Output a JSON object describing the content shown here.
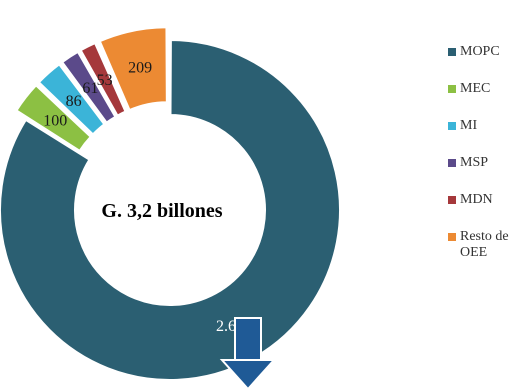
{
  "chart_data": {
    "type": "pie",
    "variant": "donut",
    "center_label": "G. 3,2 billones",
    "slices": [
      {
        "label": "MOPC",
        "value": 2666,
        "value_label": "2.666",
        "color": "#2b5f72"
      },
      {
        "label": "MEC",
        "value": 100,
        "value_label": "100",
        "color": "#8cc043"
      },
      {
        "label": "MI",
        "value": 86,
        "value_label": "86",
        "color": "#3bb4d8"
      },
      {
        "label": "MSP",
        "value": 61,
        "value_label": "61",
        "color": "#5b4a8a"
      },
      {
        "label": "MDN",
        "value": 53,
        "value_label": "53",
        "color": "#a5383b"
      },
      {
        "label": "Resto de\nOEE",
        "value": 209,
        "value_label": "209",
        "color": "#ec8a33"
      }
    ],
    "legend_position": "right",
    "exploded_slices": [
      "MEC",
      "MI",
      "MSP",
      "MDN",
      "Resto de\nOEE"
    ],
    "annotation_arrow": {
      "direction": "down",
      "color": "#1f5a96"
    }
  }
}
